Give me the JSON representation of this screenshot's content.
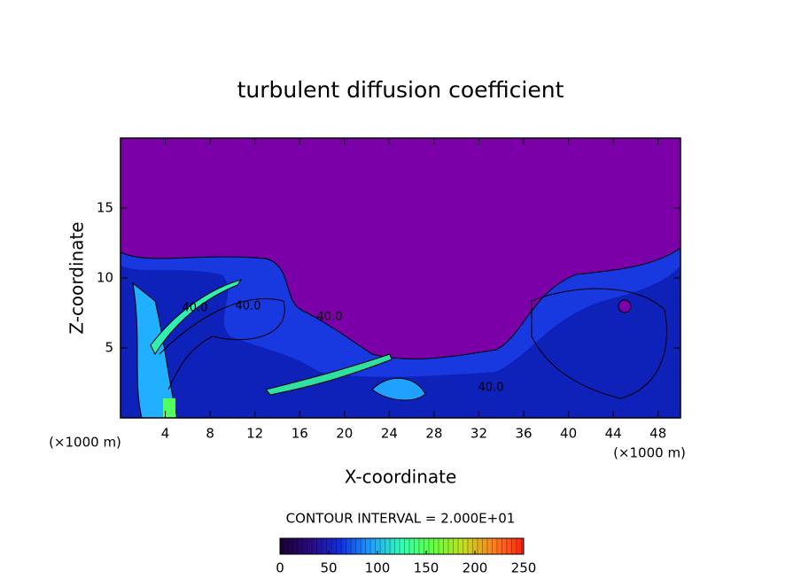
{
  "chart_data": {
    "type": "contour",
    "title": "turbulent diffusion coefficient",
    "xlabel": "X-coordinate",
    "ylabel": "Z-coordinate",
    "x_unit": "(×1000 m)",
    "x_unit_right": "(×1000 m)",
    "contour_interval": "CONTOUR INTERVAL = 2.000E+01",
    "annotations": [
      "40.0",
      "40.0",
      "40.0",
      "40.0"
    ],
    "xlim": [
      0,
      50
    ],
    "xticks": [
      4,
      8,
      12,
      16,
      20,
      24,
      28,
      32,
      36,
      40,
      44,
      48
    ],
    "ylim": [
      0,
      20
    ],
    "yticks": [
      5,
      10,
      15
    ],
    "colorbar": {
      "lim": [
        0,
        250
      ],
      "ticks": [
        0,
        50,
        100,
        150,
        200,
        250
      ],
      "colors": [
        "#1a0030",
        "#2a0a80",
        "#1030e0",
        "#20a0ff",
        "#30ffb0",
        "#60ff40",
        "#c0e020",
        "#ff8020",
        "#ff2010"
      ]
    },
    "background_color": "#7b00a8"
  }
}
